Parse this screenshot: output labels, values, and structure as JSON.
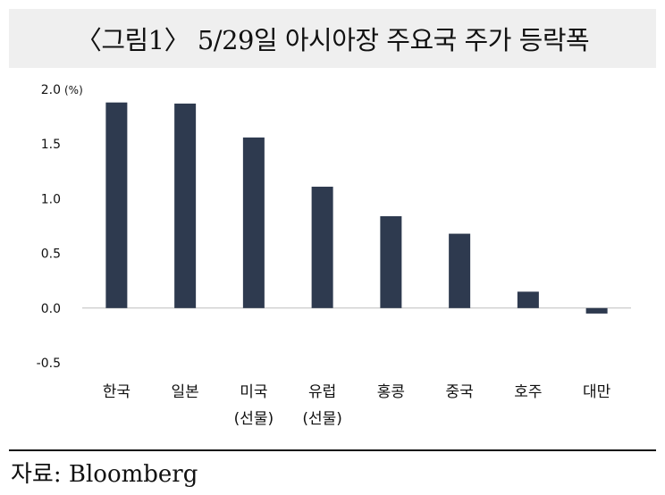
{
  "title": "〈그림1〉 5/29일 아시아장 주요국 주가 등락폭",
  "source": "자료: Bloomberg",
  "chart_data": {
    "type": "bar",
    "unit": "(%)",
    "categories": [
      [
        "한국"
      ],
      [
        "일본"
      ],
      [
        "미국",
        "(선물)"
      ],
      [
        "유럽",
        "(선물)"
      ],
      [
        "홍콩"
      ],
      [
        "중국"
      ],
      [
        "호주"
      ],
      [
        "대만"
      ]
    ],
    "values": [
      1.88,
      1.87,
      1.56,
      1.11,
      0.84,
      0.68,
      0.15,
      -0.05
    ],
    "ylim": [
      -0.5,
      2.0
    ],
    "yticks": [
      "2.0",
      "1.5",
      "1.0",
      "0.5",
      "0.0",
      "-0.5"
    ],
    "bar_color": "#2e3a4f",
    "grid": false
  }
}
